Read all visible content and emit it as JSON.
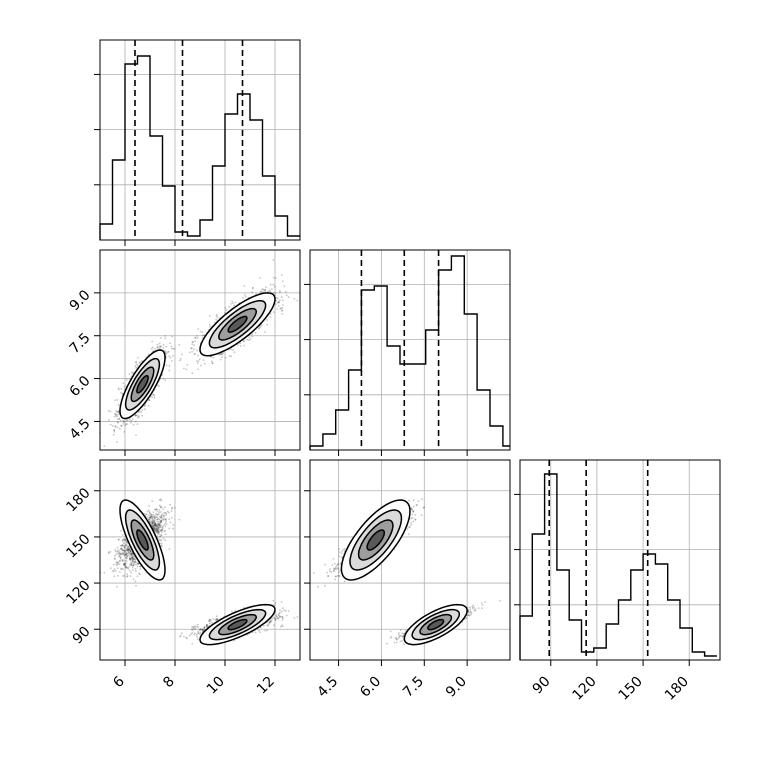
{
  "chart_data": {
    "type": "corner",
    "parameters": [
      "",
      "",
      ""
    ],
    "ranges": [
      [
        5.0,
        13.0
      ],
      [
        3.5,
        10.5
      ],
      [
        70,
        200
      ]
    ],
    "ticks": [
      {
        "values": [
          6,
          8,
          10,
          12
        ],
        "labels": [
          "6",
          "8",
          "10",
          "12"
        ]
      },
      {
        "values": [
          4.5,
          6.0,
          7.5,
          9.0
        ],
        "labels": [
          "4.5",
          "6.0",
          "7.5",
          "9.0"
        ]
      },
      {
        "values": [
          90,
          120,
          150,
          180
        ],
        "labels": [
          "90",
          "120",
          "150",
          "180"
        ]
      }
    ],
    "quantile_lines": [
      [
        6.4,
        8.3,
        10.7
      ],
      [
        5.3,
        6.8,
        8.0
      ],
      [
        89,
        113,
        153
      ]
    ],
    "histograms": [
      {
        "bin_edges": [
          5.0,
          5.5,
          6.0,
          6.5,
          7.0,
          7.5,
          8.0,
          8.5,
          9.0,
          9.5,
          10.0,
          10.5,
          11.0,
          11.5,
          12.0,
          12.5,
          13.0
        ],
        "counts": [
          0.08,
          0.4,
          0.88,
          0.92,
          0.52,
          0.27,
          0.04,
          0.02,
          0.1,
          0.37,
          0.63,
          0.73,
          0.6,
          0.32,
          0.12,
          0.02
        ]
      },
      {
        "bin_edges": [
          3.5,
          3.95,
          4.4,
          4.85,
          5.3,
          5.75,
          6.2,
          6.65,
          7.1,
          7.55,
          8.0,
          8.45,
          8.9,
          9.35,
          9.8,
          10.25,
          10.5
        ],
        "counts": [
          0.02,
          0.08,
          0.2,
          0.4,
          0.8,
          0.82,
          0.52,
          0.43,
          0.43,
          0.6,
          0.9,
          0.97,
          0.68,
          0.3,
          0.12,
          0.02
        ]
      },
      {
        "bin_edges": [
          70,
          78,
          86,
          94,
          102,
          110,
          118,
          126,
          134,
          142,
          150,
          158,
          166,
          174,
          182,
          190,
          198
        ],
        "counts": [
          0.22,
          0.63,
          0.93,
          0.45,
          0.2,
          0.04,
          0.06,
          0.18,
          0.3,
          0.45,
          0.53,
          0.48,
          0.3,
          0.16,
          0.04,
          0.02
        ]
      }
    ],
    "clusters": [
      {
        "mean": [
          6.7,
          5.8,
          148
        ],
        "sd": [
          0.45,
          0.6,
          13
        ],
        "rho": [
          0.78,
          0.75,
          0.72
        ],
        "weight": 0.5
      },
      {
        "mean": [
          10.5,
          7.9,
          93
        ],
        "sd": [
          0.75,
          0.55,
          6.5
        ],
        "rho": [
          0.8,
          0.75,
          0.7
        ],
        "weight": 0.5
      }
    ],
    "grid": true,
    "legend": "none"
  }
}
